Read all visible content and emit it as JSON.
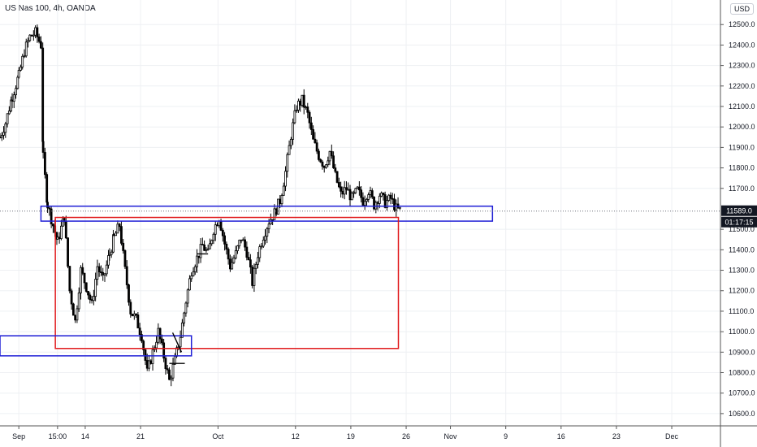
{
  "header": {
    "symbol_line": "US Nas 100, 4h, OANDA",
    "currency_button": "USD"
  },
  "chart_data": {
    "type": "candlestick",
    "ylim": [
      10540,
      12620
    ],
    "y_ticks": [
      12500,
      12400,
      12300,
      12200,
      12100,
      12000,
      11900,
      11800,
      11700,
      11500,
      11400,
      11300,
      11200,
      11100,
      11000,
      10900,
      10800,
      10700,
      10600
    ],
    "y_tick_labels": [
      "12500.0",
      "12400.0",
      "12300.0",
      "12200.0",
      "12100.0",
      "12000.0",
      "11900.0",
      "11800.0",
      "11700.0",
      "11500.0",
      "11400.0",
      "11300.0",
      "11200.0",
      "11100.0",
      "11000.0",
      "10900.0",
      "10800.0",
      "10700.0",
      "10600.0"
    ],
    "x_ticks": [
      {
        "label": "Sep",
        "day": 0
      },
      {
        "label": "15:00",
        "day": 3.5
      },
      {
        "label": "14",
        "day": 6
      },
      {
        "label": "21",
        "day": 11
      },
      {
        "label": "Oct",
        "day": 18
      },
      {
        "label": "12",
        "day": 25
      },
      {
        "label": "19",
        "day": 30
      },
      {
        "label": "26",
        "day": 35
      },
      {
        "label": "Nov",
        "day": 39
      },
      {
        "label": "9",
        "day": 44
      },
      {
        "label": "16",
        "day": 49
      },
      {
        "label": "23",
        "day": 54
      },
      {
        "label": "Dec",
        "day": 59
      }
    ],
    "x_range_days": [
      -1.7,
      63.4
    ],
    "last_price": "11589.0",
    "countdown": "01:17:15",
    "last_price_value": 11589,
    "price_path": [
      [
        -1.7,
        11950
      ],
      [
        -1.2,
        12020
      ],
      [
        -0.6,
        12150
      ],
      [
        0,
        12250
      ],
      [
        0.5,
        12370
      ],
      [
        1,
        12440
      ],
      [
        1.5,
        12460
      ],
      [
        2,
        12400
      ],
      [
        2.2,
        11850
      ],
      [
        2.6,
        11620
      ],
      [
        3.1,
        11520
      ],
      [
        3.5,
        11440
      ],
      [
        4.1,
        11560
      ],
      [
        4.6,
        11200
      ],
      [
        5.1,
        11050
      ],
      [
        5.6,
        11300
      ],
      [
        6.1,
        11220
      ],
      [
        6.6,
        11130
      ],
      [
        7.1,
        11320
      ],
      [
        7.6,
        11250
      ],
      [
        8.2,
        11380
      ],
      [
        8.6,
        11460
      ],
      [
        9.1,
        11520
      ],
      [
        9.6,
        11300
      ],
      [
        10.1,
        11100
      ],
      [
        10.6,
        11060
      ],
      [
        11.1,
        10980
      ],
      [
        11.6,
        10800
      ],
      [
        12.1,
        10900
      ],
      [
        12.6,
        11000
      ],
      [
        13.1,
        10880
      ],
      [
        13.6,
        10760
      ],
      [
        14.1,
        10860
      ],
      [
        14.6,
        10980
      ],
      [
        15.1,
        11150
      ],
      [
        15.6,
        11300
      ],
      [
        16.1,
        11360
      ],
      [
        16.6,
        11420
      ],
      [
        17.1,
        11380
      ],
      [
        17.6,
        11500
      ],
      [
        18.1,
        11560
      ],
      [
        18.6,
        11430
      ],
      [
        19.1,
        11320
      ],
      [
        19.6,
        11380
      ],
      [
        20.1,
        11460
      ],
      [
        20.6,
        11390
      ],
      [
        21.1,
        11240
      ],
      [
        21.6,
        11380
      ],
      [
        22.1,
        11470
      ],
      [
        22.6,
        11540
      ],
      [
        23.1,
        11580
      ],
      [
        23.6,
        11640
      ],
      [
        24.1,
        11780
      ],
      [
        24.6,
        11960
      ],
      [
        25.1,
        12100
      ],
      [
        25.6,
        12130
      ],
      [
        26.1,
        12060
      ],
      [
        26.6,
        11930
      ],
      [
        27.1,
        11860
      ],
      [
        27.6,
        11810
      ],
      [
        28.1,
        11880
      ],
      [
        28.6,
        11760
      ],
      [
        29.1,
        11670
      ],
      [
        29.6,
        11700
      ],
      [
        30.1,
        11650
      ],
      [
        30.6,
        11690
      ],
      [
        31.1,
        11640
      ],
      [
        31.6,
        11690
      ],
      [
        32.1,
        11620
      ],
      [
        32.6,
        11670
      ],
      [
        33.1,
        11630
      ],
      [
        33.6,
        11650
      ],
      [
        34.1,
        11600
      ],
      [
        34.6,
        11589
      ]
    ],
    "zones": [
      {
        "name": "blue-zone-upper",
        "color": "#1f1fd6",
        "day0": 2.0,
        "day1": 42.8,
        "y_top": 11613,
        "y_bottom": 11540
      },
      {
        "name": "red-zone",
        "color": "#e0191b",
        "day0": 3.3,
        "day1": 34.3,
        "y_top": 11558,
        "y_bottom": 10918
      },
      {
        "name": "blue-zone-lower",
        "color": "#1f1fd6",
        "day0": -1.7,
        "day1": 15.6,
        "y_top": 10980,
        "y_bottom": 10882
      }
    ],
    "annotations": [
      {
        "name": "black-segment-1",
        "type": "line",
        "day0": 16.1,
        "day1": 17.1,
        "y0": 11380,
        "y1": 11380
      },
      {
        "name": "black-segment-2",
        "type": "line",
        "day0": 13.9,
        "day1": 14.7,
        "y0": 10995,
        "y1": 10900
      },
      {
        "name": "black-segment-3",
        "type": "line",
        "day0": 13.6,
        "day1": 15.0,
        "y0": 10845,
        "y1": 10845
      }
    ],
    "colors": {
      "candles": "#000000",
      "grid": "#eef0f3",
      "axis_text": "#131722",
      "price_tag_bg": "#131722"
    },
    "grid": true
  }
}
